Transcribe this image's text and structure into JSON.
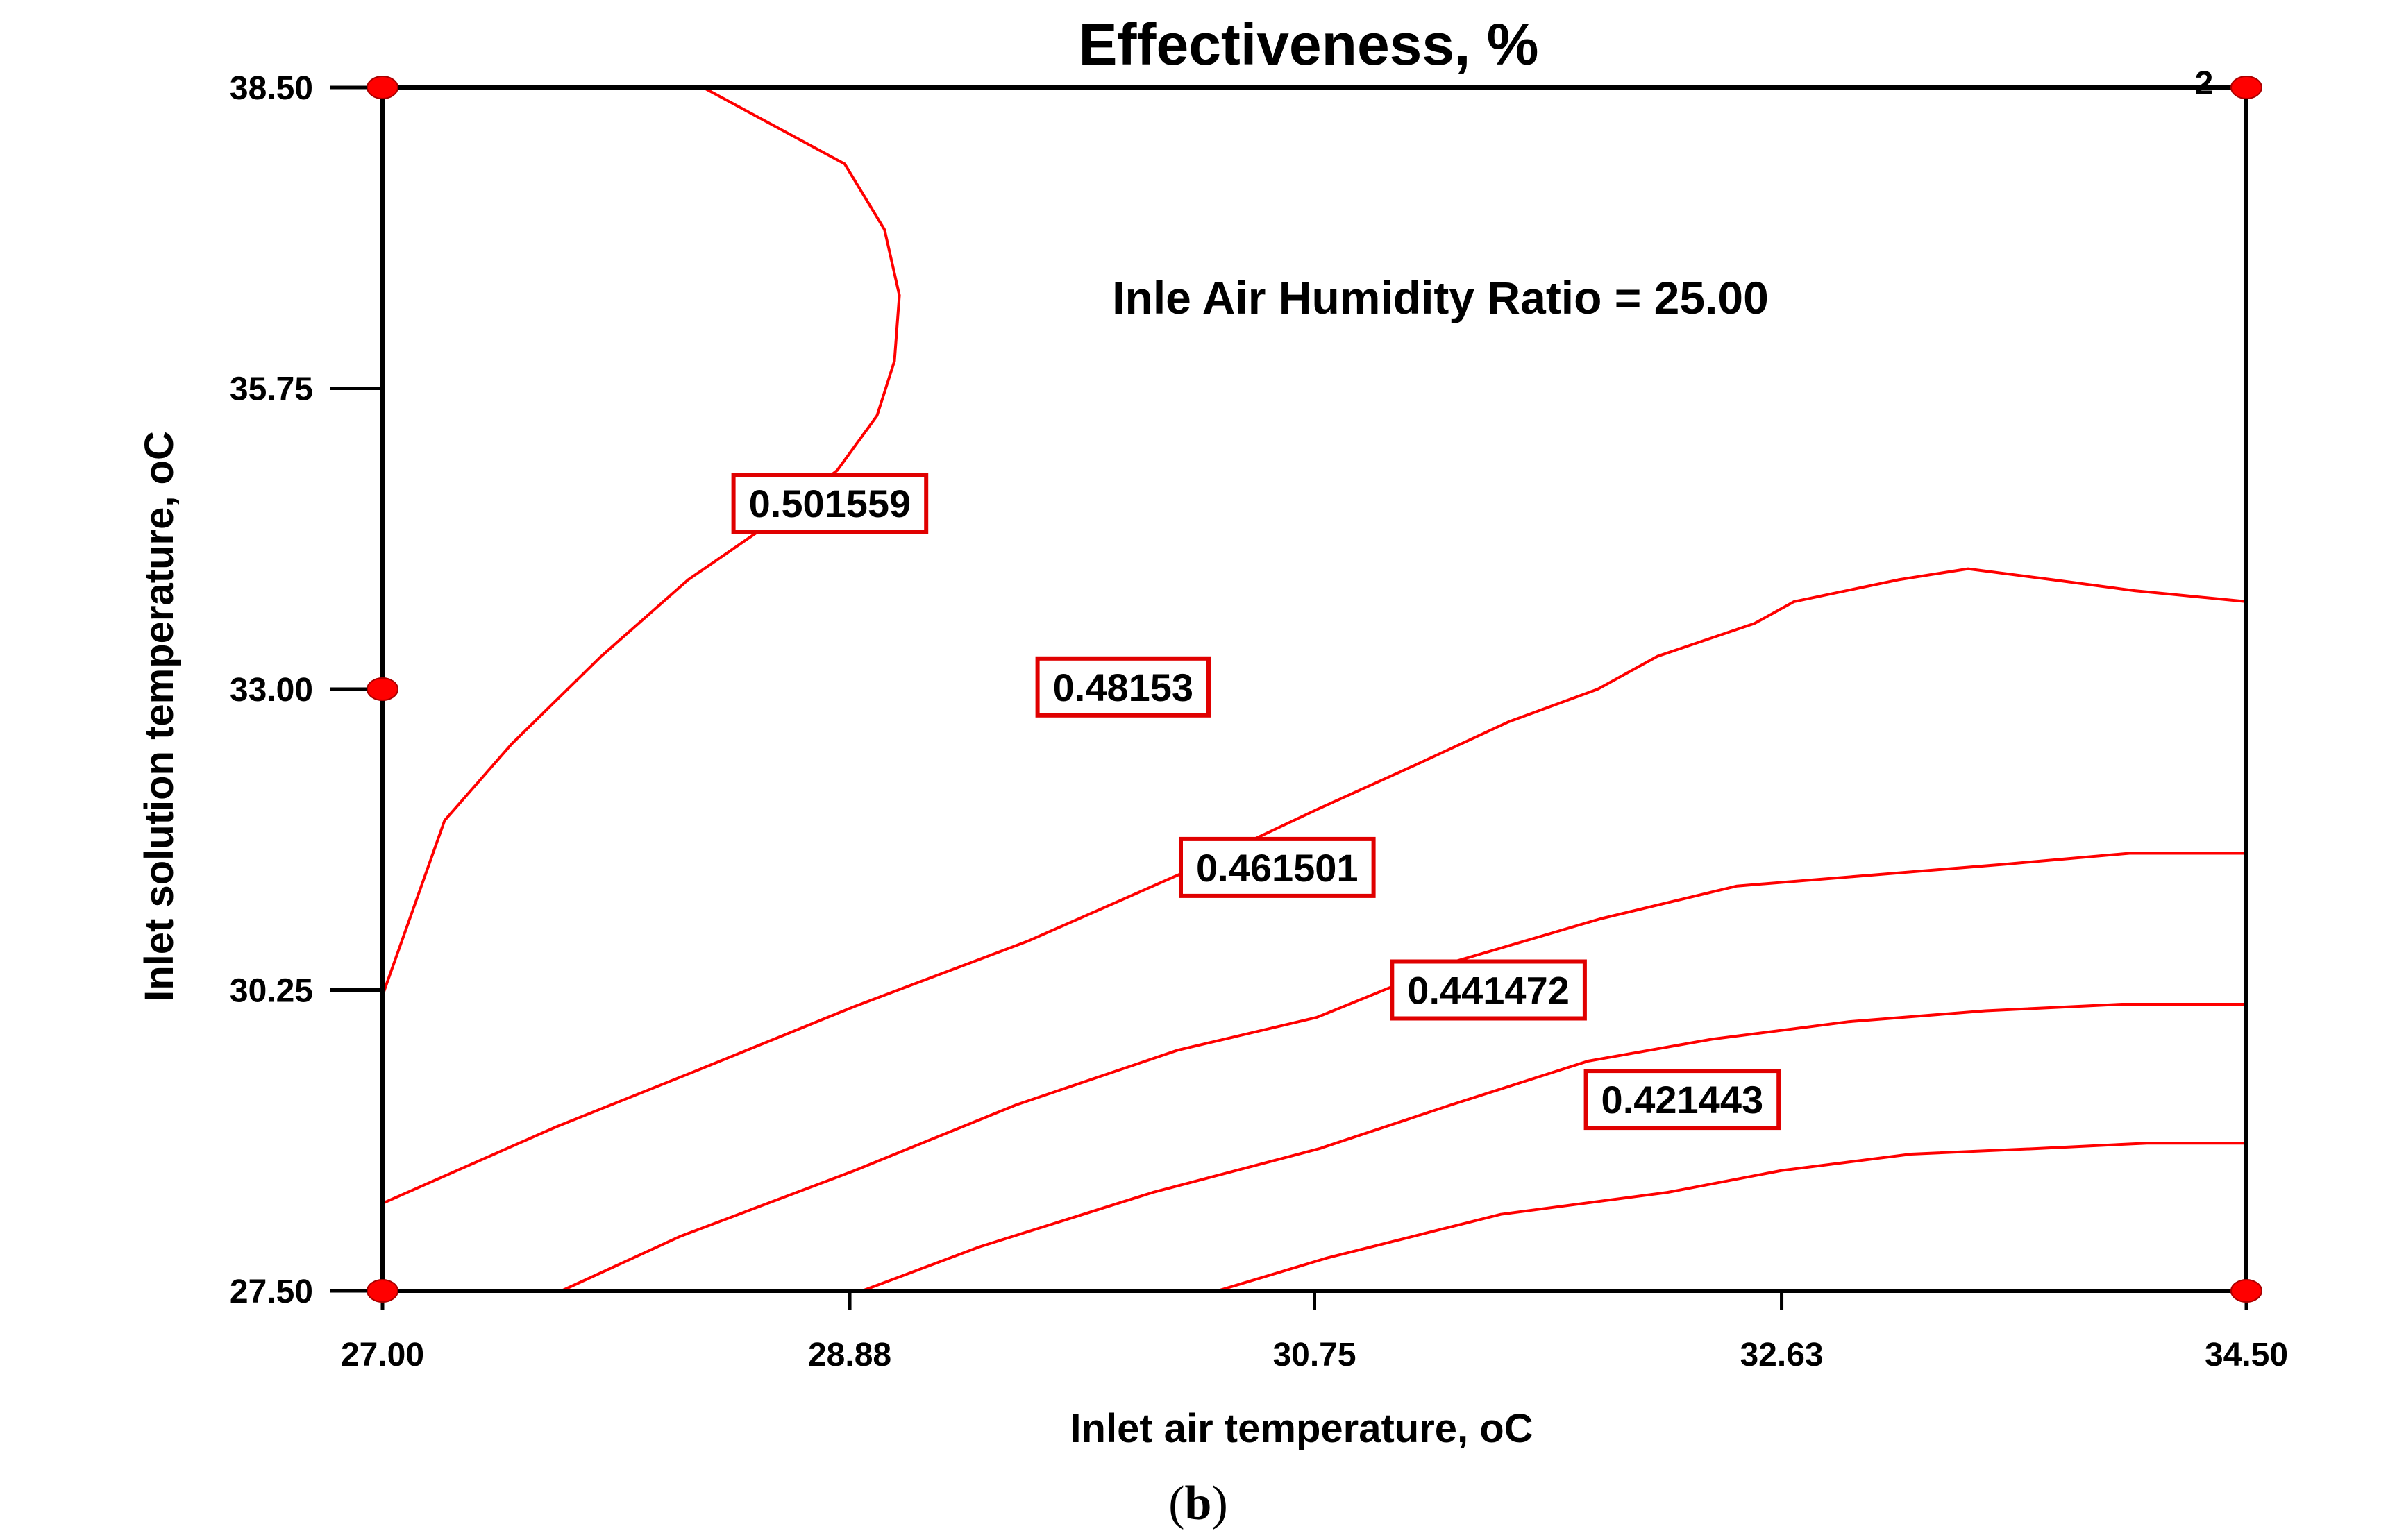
{
  "chart_data": {
    "type": "contour",
    "title": "Effectiveness, %",
    "annotation": "Inle Air Humidity Ratio = 25.00",
    "corner_label": "2",
    "xlabel": "Inlet air temperature, oC",
    "ylabel": "Inlet solution temperature, oC",
    "xlim": [
      27.0,
      34.5
    ],
    "ylim": [
      27.5,
      38.5
    ],
    "x_ticks": [
      "27.00",
      "28.88",
      "30.75",
      "32.63",
      "34.50"
    ],
    "y_ticks": [
      "27.50",
      "30.25",
      "33.00",
      "35.75",
      "38.50"
    ],
    "design_points": [
      {
        "x": 27.0,
        "y": 38.5
      },
      {
        "x": 34.5,
        "y": 38.5
      },
      {
        "x": 27.0,
        "y": 33.0
      },
      {
        "x": 27.0,
        "y": 27.5
      },
      {
        "x": 34.5,
        "y": 27.5
      }
    ],
    "contours": [
      {
        "level": "0.501559",
        "label_at": {
          "x": 28.8,
          "y": 34.7
        },
        "points": [
          [
            28.29,
            38.5
          ],
          [
            28.86,
            37.8
          ],
          [
            29.02,
            37.2
          ],
          [
            29.08,
            36.6
          ],
          [
            29.06,
            36.0
          ],
          [
            28.99,
            35.5
          ],
          [
            28.83,
            35.0
          ],
          [
            28.55,
            34.5
          ],
          [
            28.23,
            34.0
          ],
          [
            27.88,
            33.3
          ],
          [
            27.52,
            32.5
          ],
          [
            27.25,
            31.8
          ],
          [
            27.0,
            30.2
          ]
        ]
      },
      {
        "level": "0.48153",
        "label_at": {
          "x": 29.98,
          "y": 33.02
        },
        "points": [
          [
            27.0,
            28.3
          ],
          [
            27.7,
            29.0
          ],
          [
            28.25,
            29.5
          ],
          [
            28.9,
            30.1
          ],
          [
            29.6,
            30.7
          ],
          [
            30.2,
            31.3
          ],
          [
            30.76,
            31.9
          ],
          [
            31.15,
            32.3
          ],
          [
            31.53,
            32.7
          ],
          [
            31.89,
            33.0
          ],
          [
            32.13,
            33.3
          ],
          [
            32.52,
            33.6
          ],
          [
            32.68,
            33.8
          ],
          [
            33.1,
            34.0
          ],
          [
            33.38,
            34.1
          ],
          [
            33.72,
            34.0
          ],
          [
            34.05,
            33.9
          ],
          [
            34.5,
            33.8
          ]
        ]
      },
      {
        "level": "0.461501",
        "label_at": {
          "x": 30.6,
          "y": 31.37
        },
        "points": [
          [
            27.72,
            27.5
          ],
          [
            28.2,
            28.0
          ],
          [
            28.9,
            28.6
          ],
          [
            29.55,
            29.2
          ],
          [
            30.2,
            29.7
          ],
          [
            30.76,
            30.0
          ],
          [
            31.3,
            30.5
          ],
          [
            31.9,
            30.9
          ],
          [
            32.45,
            31.2
          ],
          [
            32.99,
            31.3
          ],
          [
            33.53,
            31.4
          ],
          [
            34.03,
            31.5
          ],
          [
            34.5,
            31.5
          ]
        ]
      },
      {
        "level": "0.441472",
        "label_at": {
          "x": 31.45,
          "y": 30.25
        },
        "points": [
          [
            28.93,
            27.5
          ],
          [
            29.4,
            27.9
          ],
          [
            30.1,
            28.4
          ],
          [
            30.77,
            28.8
          ],
          [
            31.3,
            29.2
          ],
          [
            31.85,
            29.6
          ],
          [
            32.35,
            29.8
          ],
          [
            32.9,
            29.96
          ],
          [
            33.45,
            30.06
          ],
          [
            34.0,
            30.12
          ],
          [
            34.5,
            30.12
          ]
        ]
      },
      {
        "level": "0.421443",
        "label_at": {
          "x": 32.23,
          "y": 29.25
        },
        "points": [
          [
            30.36,
            27.5
          ],
          [
            30.8,
            27.8
          ],
          [
            31.5,
            28.2
          ],
          [
            32.17,
            28.4
          ],
          [
            32.63,
            28.6
          ],
          [
            33.15,
            28.75
          ],
          [
            33.65,
            28.8
          ],
          [
            34.1,
            28.85
          ],
          [
            34.5,
            28.85
          ]
        ]
      }
    ]
  },
  "caption": {
    "open": "(",
    "letter": "b",
    "close": ")"
  },
  "colors": {
    "contour": "#ff0000",
    "label_box": "#e00000",
    "design_point": "#ff0000",
    "frame": "#000000"
  }
}
